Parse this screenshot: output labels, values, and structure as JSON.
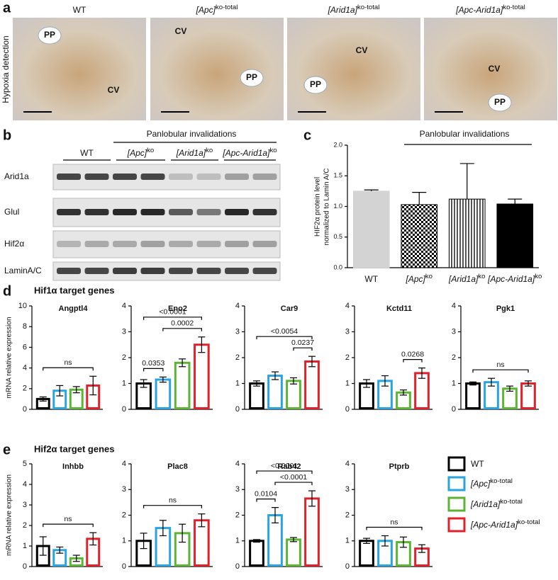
{
  "panel_labels": [
    "a",
    "b",
    "c",
    "d",
    "e"
  ],
  "panel_a": {
    "row_label": "Hypoxia detection",
    "column_titles": [
      "WT",
      "[Apc]ko-total",
      "[Arid1a]ko-total",
      "[Apc-Arid1a]ko-total"
    ],
    "image_labels": [
      [
        "PP",
        "CV"
      ],
      [
        "CV",
        "PP"
      ],
      [
        "PP",
        "CV"
      ],
      [
        "CV",
        "PP"
      ]
    ]
  },
  "panel_b": {
    "title": "Panlobular invalidations",
    "groups": [
      "WT",
      "[Apc]ko",
      "[Arid1a]ko",
      "[Apc-Arid1a]ko"
    ],
    "rows": [
      "Arid1a",
      "Glul",
      "Hif2α",
      "LaminA/C"
    ]
  },
  "section_titles": [
    "Hif1α target genes",
    "Hif2α target genes"
  ],
  "legend": {
    "entries": [
      {
        "name": "WT",
        "color": "#000000"
      },
      {
        "name": "[Apc]ko-total",
        "color": "#2aa3e0"
      },
      {
        "name": "[Arid1a]ko-total",
        "color": "#5cb434"
      },
      {
        "name": "[Apc-Arid1a]ko-total",
        "color": "#e0202a"
      }
    ]
  },
  "chart_data": [
    {
      "type": "bar",
      "title": "Panlobular invalidations",
      "ylabel": [
        "HIF2α protein level",
        "normalized to Lamin A/C"
      ],
      "categories": [
        "WT",
        "[Apc]ko",
        "[Arid1a]ko",
        "[Apc-Arid1a]ko"
      ],
      "values": [
        1.25,
        1.03,
        1.12,
        1.04
      ],
      "errors": [
        0.02,
        0.2,
        0.58,
        0.08
      ],
      "colors": [
        "#d3d3d3",
        "#000000",
        "#000000",
        "#000000"
      ],
      "patterns": [
        "solid",
        "checker",
        "stripes",
        "solid"
      ],
      "ylim": [
        0,
        2.0
      ],
      "yticks": [
        {
          "value": 0,
          "label": "0.0"
        },
        {
          "value": 0.5,
          "label": "0.5"
        },
        {
          "value": 1,
          "label": "1.0"
        },
        {
          "value": 1.5,
          "label": "1.5"
        },
        {
          "value": 2,
          "label": "2.0"
        }
      ]
    },
    {
      "type": "bar",
      "title": "Angptl4",
      "ylabel": "mRNA relative expression",
      "values": [
        1.0,
        1.8,
        1.9,
        2.3
      ],
      "errors": [
        0.2,
        0.5,
        0.3,
        0.9
      ],
      "ylim": [
        0,
        10
      ],
      "yticks": [
        0,
        2,
        4,
        6,
        8,
        10
      ],
      "comparisons": [
        {
          "label": "ns",
          "between": [
            "WT",
            "[Apc-Arid1a]ko-total"
          ]
        }
      ]
    },
    {
      "type": "bar",
      "title": "Eno2",
      "values": [
        1.0,
        1.15,
        1.8,
        2.5
      ],
      "errors": [
        0.15,
        0.1,
        0.15,
        0.3
      ],
      "ylim": [
        0,
        4
      ],
      "yticks": [
        0,
        1,
        2,
        3,
        4
      ],
      "comparisons": [
        {
          "label": "0.0353",
          "between": [
            "WT",
            "[Apc]ko-total"
          ]
        },
        {
          "label": "0.0002",
          "between": [
            "[Apc]ko-total",
            "[Apc-Arid1a]ko-total"
          ]
        },
        {
          "label": "<0.0001",
          "between": [
            "WT",
            "[Apc-Arid1a]ko-total"
          ]
        }
      ]
    },
    {
      "type": "bar",
      "title": "Car9",
      "values": [
        1.0,
        1.3,
        1.1,
        1.85
      ],
      "errors": [
        0.1,
        0.15,
        0.12,
        0.2
      ],
      "ylim": [
        0,
        4
      ],
      "yticks": [
        0,
        1,
        2,
        3,
        4
      ],
      "comparisons": [
        {
          "label": "0.0237",
          "between": [
            "[Arid1a]ko-total",
            "[Apc-Arid1a]ko-total"
          ]
        },
        {
          "label": "<0.0054",
          "between": [
            "WT",
            "[Apc-Arid1a]ko-total"
          ]
        }
      ]
    },
    {
      "type": "bar",
      "title": "Kctd11",
      "values": [
        1.0,
        1.1,
        0.65,
        1.4
      ],
      "errors": [
        0.15,
        0.2,
        0.1,
        0.2
      ],
      "ylim": [
        0,
        4
      ],
      "yticks": [
        0,
        1,
        2,
        3,
        4
      ],
      "comparisons": [
        {
          "label": "0.0268",
          "between": [
            "[Arid1a]ko-total",
            "[Apc-Arid1a]ko-total"
          ]
        }
      ]
    },
    {
      "type": "bar",
      "title": "Pgk1",
      "values": [
        1.0,
        1.05,
        0.8,
        1.0
      ],
      "errors": [
        0.06,
        0.15,
        0.1,
        0.1
      ],
      "ylim": [
        0,
        4
      ],
      "yticks": [
        0,
        1,
        2,
        3,
        4
      ],
      "comparisons": [
        {
          "label": "ns",
          "between": [
            "WT",
            "[Apc-Arid1a]ko-total"
          ]
        }
      ]
    },
    {
      "type": "bar",
      "title": "Inhbb",
      "ylabel": "mRNA relative expression",
      "values": [
        1.0,
        0.8,
        0.4,
        1.35
      ],
      "errors": [
        0.45,
        0.15,
        0.15,
        0.3
      ],
      "ylim": [
        0,
        5
      ],
      "yticks": [
        0,
        1,
        2,
        3,
        4,
        5
      ],
      "comparisons": [
        {
          "label": "ns",
          "between": [
            "WT",
            "[Apc-Arid1a]ko-total"
          ]
        }
      ]
    },
    {
      "type": "bar",
      "title": "Plac8",
      "values": [
        1.0,
        1.5,
        1.3,
        1.8
      ],
      "errors": [
        0.3,
        0.3,
        0.35,
        0.25
      ],
      "ylim": [
        0,
        4
      ],
      "yticks": [
        0,
        1,
        2,
        3,
        4
      ],
      "comparisons": [
        {
          "label": "ns",
          "between": [
            "WT",
            "[Apc-Arid1a]ko-total"
          ]
        }
      ]
    },
    {
      "type": "bar",
      "title": "Rab42",
      "values": [
        1.0,
        2.0,
        1.05,
        2.65
      ],
      "errors": [
        0.05,
        0.3,
        0.08,
        0.3
      ],
      "ylim": [
        0,
        4
      ],
      "yticks": [
        0,
        1,
        2,
        3,
        4
      ],
      "comparisons": [
        {
          "label": "0.0104",
          "between": [
            "WT",
            "[Apc]ko-total"
          ]
        },
        {
          "label": "<0.0001",
          "between": [
            "[Apc]ko-total",
            "[Apc-Arid1a]ko-total"
          ]
        },
        {
          "label": "<0.0001",
          "between": [
            "WT",
            "[Apc-Arid1a]ko-total"
          ]
        }
      ]
    },
    {
      "type": "bar",
      "title": "Ptprb",
      "values": [
        1.0,
        1.0,
        0.95,
        0.7
      ],
      "errors": [
        0.1,
        0.2,
        0.2,
        0.15
      ],
      "ylim": [
        0,
        4
      ],
      "yticks": [
        0,
        1,
        2,
        3,
        4
      ],
      "comparisons": [
        {
          "label": "ns",
          "between": [
            "WT",
            "[Apc-Arid1a]ko-total"
          ]
        }
      ]
    }
  ]
}
